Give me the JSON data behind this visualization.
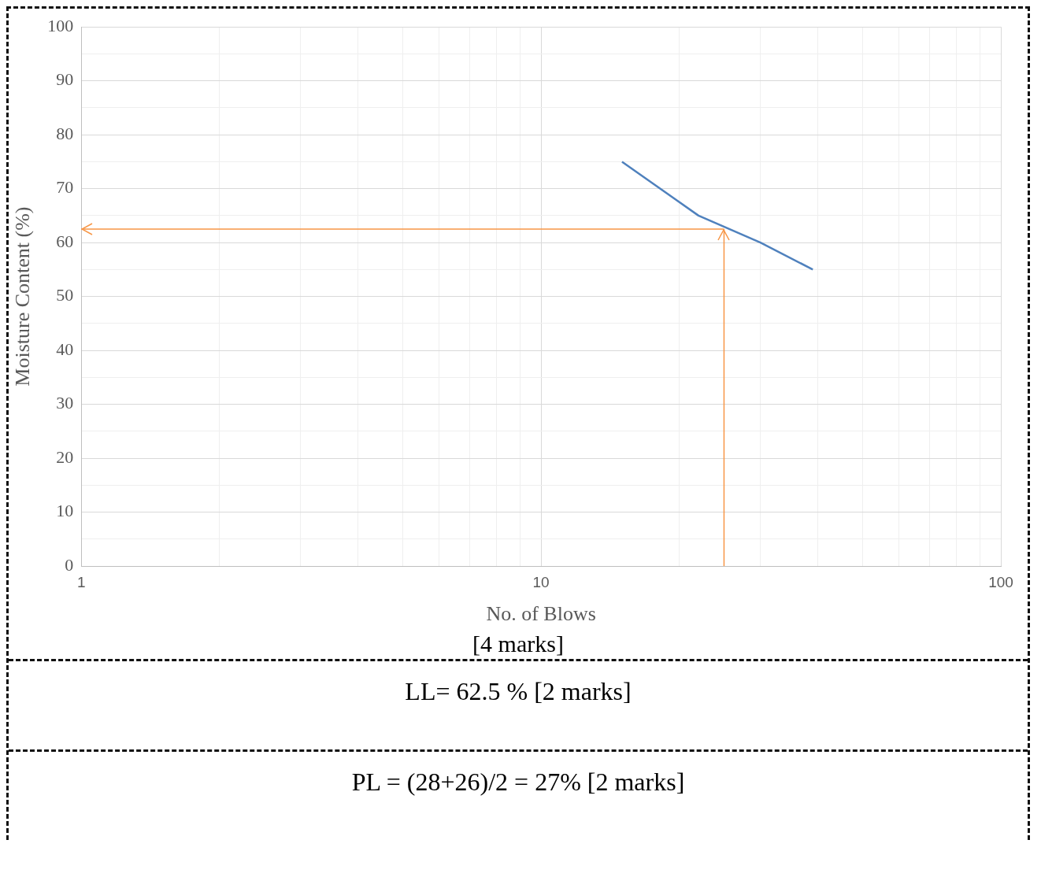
{
  "chart_data": {
    "type": "line",
    "xlabel": "No. of Blows",
    "ylabel": "Moisture Content (%)",
    "log": "x",
    "grid": true,
    "legend": false,
    "marker": "none",
    "line_style": "solid",
    "xlim": [
      1,
      100
    ],
    "xticks": [
      1,
      {
        "value": 2,
        "label": null
      },
      {
        "value": 3,
        "label": null
      },
      {
        "value": 4,
        "label": null
      },
      {
        "value": 5,
        "label": null
      },
      {
        "value": 6,
        "label": null
      },
      {
        "value": 7,
        "label": null
      },
      {
        "value": 8,
        "label": null
      },
      {
        "value": 9,
        "label": null
      },
      10,
      {
        "value": 20,
        "label": null
      },
      {
        "value": 30,
        "label": null
      },
      {
        "value": 40,
        "label": null
      },
      {
        "value": 50,
        "label": null
      },
      {
        "value": 60,
        "label": null
      },
      {
        "value": 70,
        "label": null
      },
      {
        "value": 80,
        "label": null
      },
      {
        "value": 90,
        "label": null
      },
      100
    ],
    "ylim": [
      0,
      100
    ],
    "yticks": [
      0,
      {
        "value": 5,
        "label": null
      },
      10,
      {
        "value": 15,
        "label": null
      },
      20,
      {
        "value": 25,
        "label": null
      },
      30,
      {
        "value": 35,
        "label": null
      },
      40,
      {
        "value": 45,
        "label": null
      },
      50,
      {
        "value": 55,
        "label": null
      },
      60,
      {
        "value": 65,
        "label": null
      },
      70,
      {
        "value": 75,
        "label": null
      },
      80,
      {
        "value": 85,
        "label": null
      },
      90,
      {
        "value": 95,
        "label": null
      },
      100
    ],
    "series": [
      {
        "color": "#4f81bd",
        "x": [
          15,
          22,
          30,
          39
        ],
        "values": [
          75,
          65,
          60,
          55
        ]
      }
    ],
    "ref_lines": [
      {
        "axis": "x",
        "value": 25,
        "color": "#f79646"
      },
      {
        "axis": "y",
        "value": 62.5,
        "color": "#f79646"
      }
    ],
    "annotations": [
      "[4 marks]",
      "LL= 62.5 % [2 marks]",
      "PL = (28+26)/2 = 27% [2 marks]"
    ]
  }
}
